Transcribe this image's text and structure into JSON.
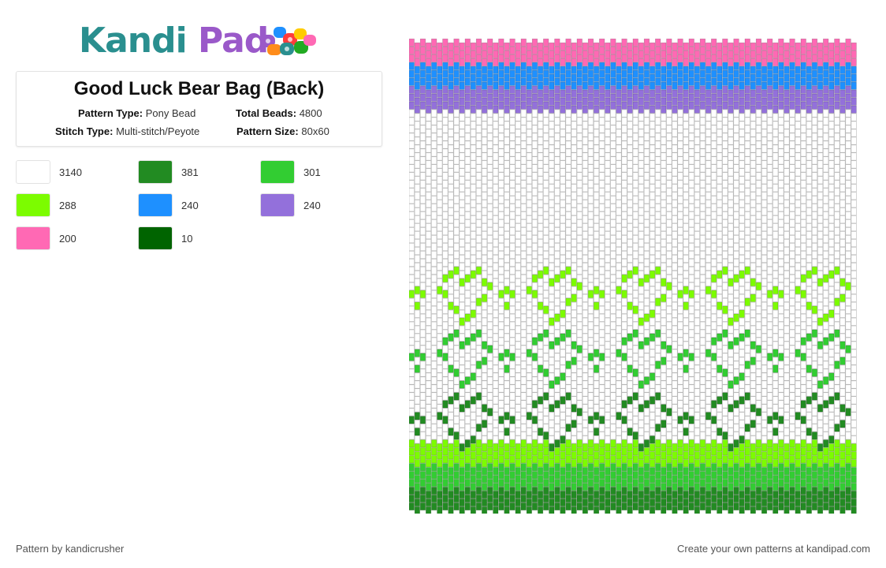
{
  "brand": {
    "name_part1": "Kandi",
    "name_part2": "Pad",
    "logo_name": "kandi-pad-logo"
  },
  "pattern": {
    "title": "Good Luck Bear Bag (Back)",
    "labels": {
      "pattern_type": "Pattern Type:",
      "total_beads": "Total Beads:",
      "stitch_type": "Stitch Type:",
      "pattern_size": "Pattern Size:"
    },
    "pattern_type": "Pony Bead",
    "total_beads": "4800",
    "stitch_type": "Multi-stitch/Peyote",
    "pattern_size": "80x60",
    "columns": 80,
    "rows": 60
  },
  "palette": [
    {
      "color": "#ffffff",
      "count": "3140"
    },
    {
      "color": "#228b22",
      "count": "381"
    },
    {
      "color": "#32cd32",
      "count": "301"
    },
    {
      "color": "#7cfc00",
      "count": "288"
    },
    {
      "color": "#1e90ff",
      "count": "240"
    },
    {
      "color": "#9370db",
      "count": "240"
    },
    {
      "color": "#ff69b4",
      "count": "200"
    },
    {
      "color": "#006400",
      "count": "10"
    }
  ],
  "stripes": {
    "top": [
      "#ff69b4",
      "#1e90ff",
      "#9370db"
    ],
    "bottom": [
      "#7cfc00",
      "#32cd32",
      "#228b22"
    ]
  },
  "heart_rows": [
    "#7cfc00",
    "#32cd32",
    "#228b22"
  ],
  "footer": {
    "credit": "Pattern by kandicrusher",
    "cta": "Create your own patterns at kandipad.com"
  }
}
